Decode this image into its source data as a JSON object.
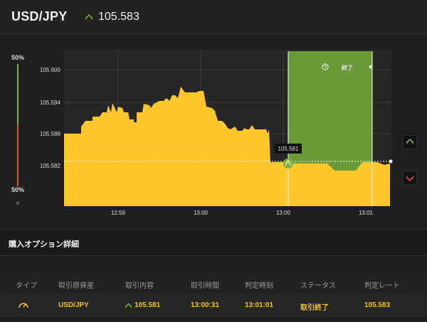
{
  "header": {
    "pair": "USD/JPY",
    "price": "105.583",
    "price_direction": "up-arrow-icon"
  },
  "gauge": {
    "top_label": "50%",
    "bottom_label": "50%",
    "close_symbol": "×",
    "top_color": "#7cb342",
    "bottom_color": "#e0533a"
  },
  "chart_data": {
    "type": "area",
    "y_ticks": [
      "105.600",
      "105.594",
      "105.588",
      "105.582"
    ],
    "x_ticks": [
      "12:59",
      "13:00",
      "13:00",
      "13:01"
    ],
    "current_rate_label": "105.581",
    "expired_label": "終了",
    "series_color": "#ffc72c",
    "expired_zone_color": "#6a9a38",
    "grid": true
  },
  "section": {
    "title": "購入オプション詳細"
  },
  "table": {
    "headers": [
      "タイプ",
      "取引原資産",
      "取引内容",
      "取引時間",
      "判定時刻",
      "ステータス",
      "判定レート"
    ],
    "row": {
      "type_icon": "gauge-icon",
      "asset": "USD/JPY",
      "trade": "105.581",
      "trade_time": "13:00:31",
      "judge_time": "13:01:01",
      "status": "取引終了",
      "judge_rate": "105.583"
    }
  }
}
